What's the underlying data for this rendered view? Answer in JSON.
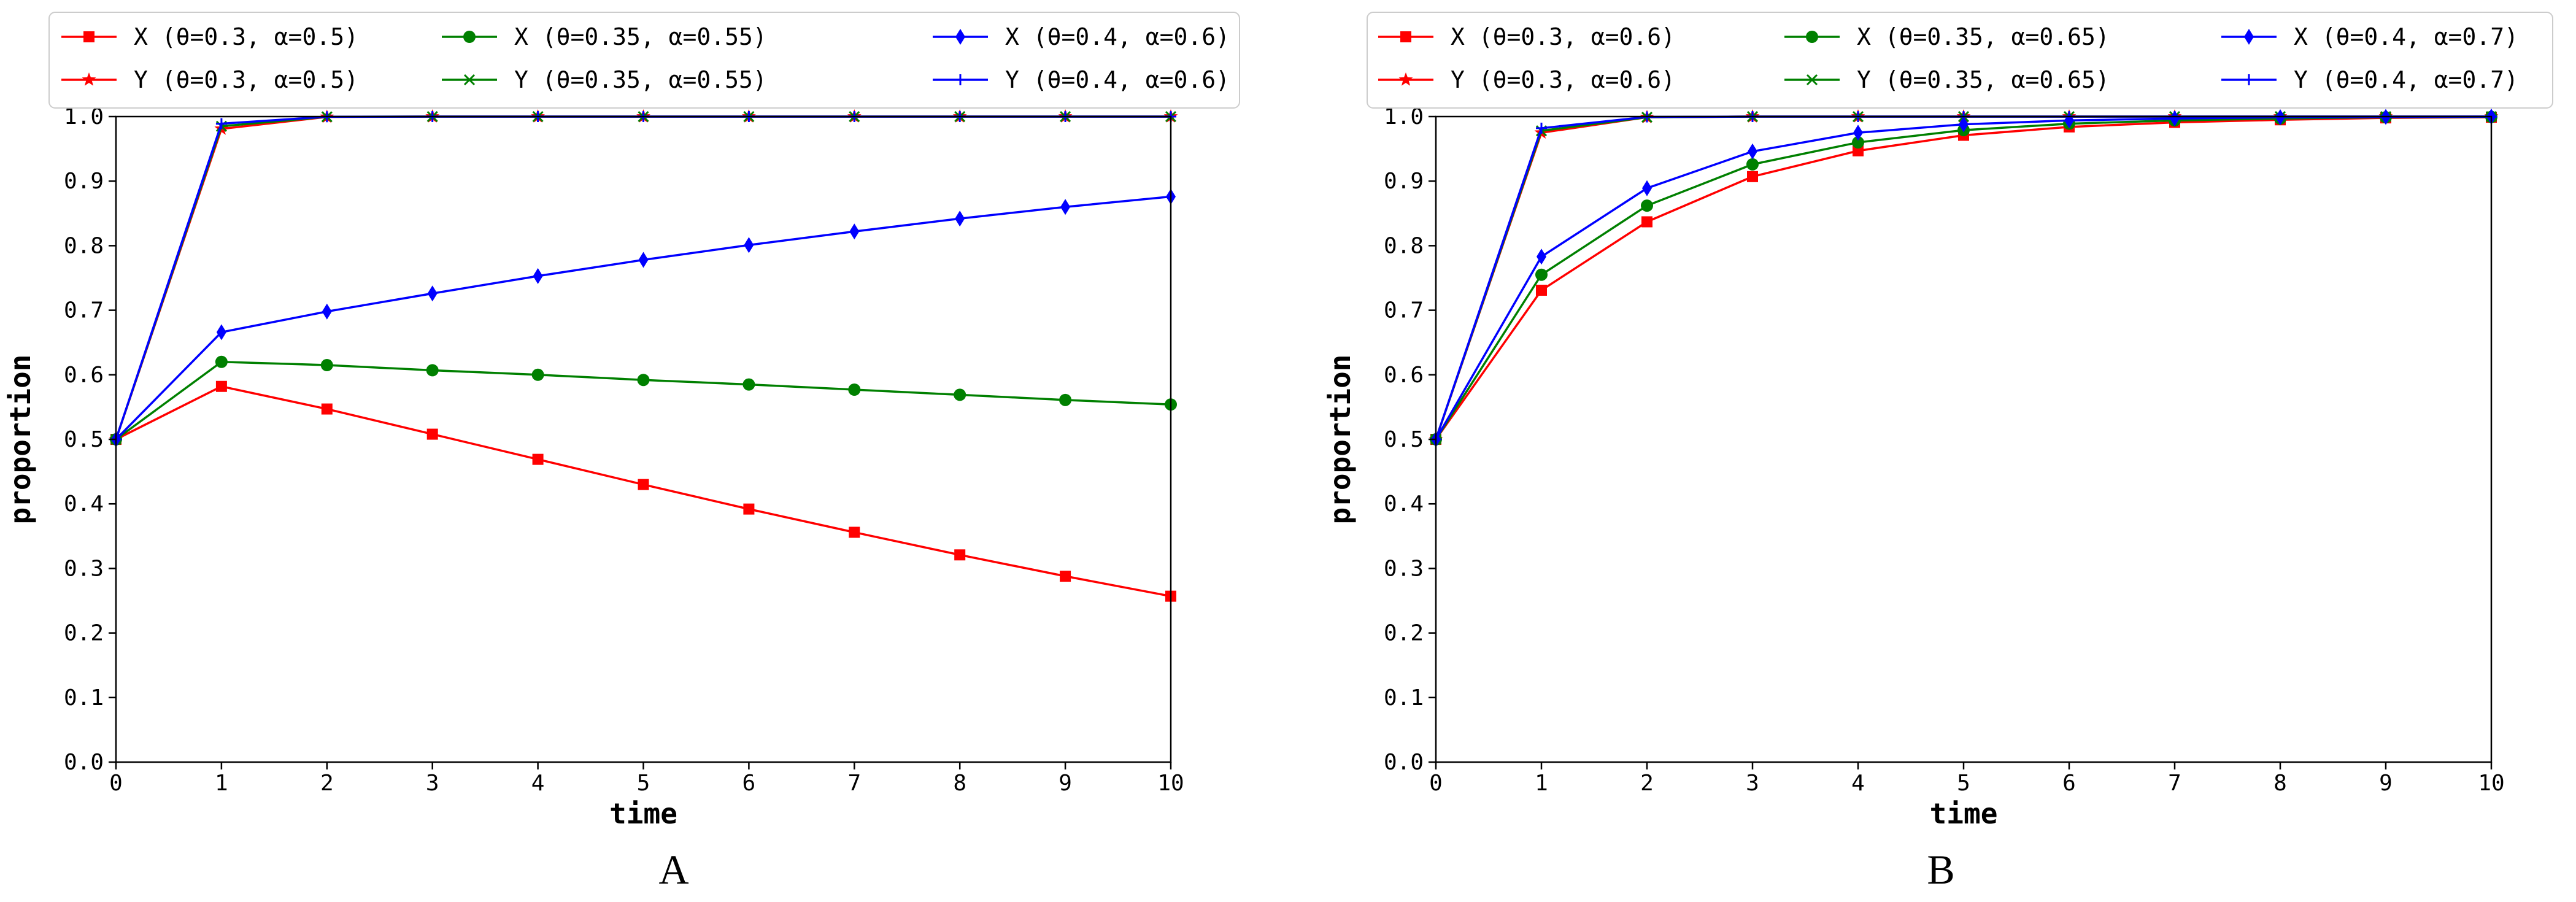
{
  "figure": {
    "panels": [
      "A",
      "B"
    ]
  },
  "chart_data": [
    {
      "type": "line",
      "panel_label": "A",
      "xlabel": "time",
      "ylabel": "proportion",
      "xlim": [
        0,
        10
      ],
      "ylim": [
        0.0,
        1.0
      ],
      "x_ticks": [
        "0",
        "1",
        "2",
        "3",
        "4",
        "5",
        "6",
        "7",
        "8",
        "9",
        "10"
      ],
      "y_ticks": [
        "0.0",
        "0.1",
        "0.2",
        "0.3",
        "0.4",
        "0.5",
        "0.6",
        "0.7",
        "0.8",
        "0.9",
        "1.0"
      ],
      "grid": false,
      "legend_position": "top",
      "x": [
        0,
        1,
        2,
        3,
        4,
        5,
        6,
        7,
        8,
        9,
        10
      ],
      "series": [
        {
          "name": "X (θ=0.3, α=0.5)",
          "color": "#ff0000",
          "marker": "square",
          "values": [
            0.5,
            0.582,
            0.547,
            0.508,
            0.469,
            0.43,
            0.392,
            0.356,
            0.321,
            0.288,
            0.257
          ]
        },
        {
          "name": "Y (θ=0.3, α=0.5)",
          "color": "#ff0000",
          "marker": "star",
          "values": [
            0.5,
            0.981,
            0.9995,
            1.0,
            1.0,
            1.0,
            1.0,
            1.0,
            1.0,
            1.0,
            1.0
          ]
        },
        {
          "name": "X (θ=0.35, α=0.55)",
          "color": "#008000",
          "marker": "circle",
          "values": [
            0.5,
            0.62,
            0.615,
            0.607,
            0.6,
            0.592,
            0.585,
            0.577,
            0.569,
            0.561,
            0.554
          ]
        },
        {
          "name": "Y (θ=0.35, α=0.55)",
          "color": "#008000",
          "marker": "x",
          "values": [
            0.5,
            0.985,
            0.9997,
            1.0,
            1.0,
            1.0,
            1.0,
            1.0,
            1.0,
            1.0,
            1.0
          ]
        },
        {
          "name": "X (θ=0.4, α=0.6)",
          "color": "#0000ff",
          "marker": "diamond",
          "values": [
            0.5,
            0.666,
            0.698,
            0.726,
            0.753,
            0.778,
            0.801,
            0.822,
            0.842,
            0.86,
            0.876
          ]
        },
        {
          "name": "Y (θ=0.4, α=0.6)",
          "color": "#0000ff",
          "marker": "plus",
          "values": [
            0.5,
            0.989,
            0.9998,
            1.0,
            1.0,
            1.0,
            1.0,
            1.0,
            1.0,
            1.0,
            1.0
          ]
        }
      ]
    },
    {
      "type": "line",
      "panel_label": "B",
      "xlabel": "time",
      "ylabel": "proportion",
      "xlim": [
        0,
        10
      ],
      "ylim": [
        0.0,
        1.0
      ],
      "x_ticks": [
        "0",
        "1",
        "2",
        "3",
        "4",
        "5",
        "6",
        "7",
        "8",
        "9",
        "10"
      ],
      "y_ticks": [
        "0.0",
        "0.1",
        "0.2",
        "0.3",
        "0.4",
        "0.5",
        "0.6",
        "0.7",
        "0.8",
        "0.9",
        "1.0"
      ],
      "grid": false,
      "legend_position": "top",
      "x": [
        0,
        1,
        2,
        3,
        4,
        5,
        6,
        7,
        8,
        9,
        10
      ],
      "series": [
        {
          "name": "X (θ=0.3, α=0.6)",
          "color": "#ff0000",
          "marker": "square",
          "values": [
            0.5,
            0.731,
            0.837,
            0.907,
            0.947,
            0.971,
            0.984,
            0.991,
            0.995,
            0.998,
            0.999
          ]
        },
        {
          "name": "Y (θ=0.3, α=0.6)",
          "color": "#ff0000",
          "marker": "star",
          "values": [
            0.5,
            0.975,
            0.999,
            1.0,
            1.0,
            1.0,
            1.0,
            1.0,
            1.0,
            1.0,
            1.0
          ]
        },
        {
          "name": "X (θ=0.35, α=0.65)",
          "color": "#008000",
          "marker": "circle",
          "values": [
            0.5,
            0.755,
            0.862,
            0.926,
            0.96,
            0.979,
            0.989,
            0.994,
            0.997,
            0.999,
            0.9995
          ]
        },
        {
          "name": "Y (θ=0.35, α=0.65)",
          "color": "#008000",
          "marker": "x",
          "values": [
            0.5,
            0.978,
            0.999,
            1.0,
            1.0,
            1.0,
            1.0,
            1.0,
            1.0,
            1.0,
            1.0
          ]
        },
        {
          "name": "X (θ=0.4, α=0.7)",
          "color": "#0000ff",
          "marker": "diamond",
          "values": [
            0.5,
            0.783,
            0.889,
            0.946,
            0.975,
            0.988,
            0.994,
            0.997,
            0.999,
            0.9995,
            1.0
          ]
        },
        {
          "name": "Y (θ=0.4, α=0.7)",
          "color": "#0000ff",
          "marker": "plus",
          "values": [
            0.5,
            0.982,
            0.9995,
            1.0,
            1.0,
            1.0,
            1.0,
            1.0,
            1.0,
            1.0,
            1.0
          ]
        }
      ]
    }
  ]
}
